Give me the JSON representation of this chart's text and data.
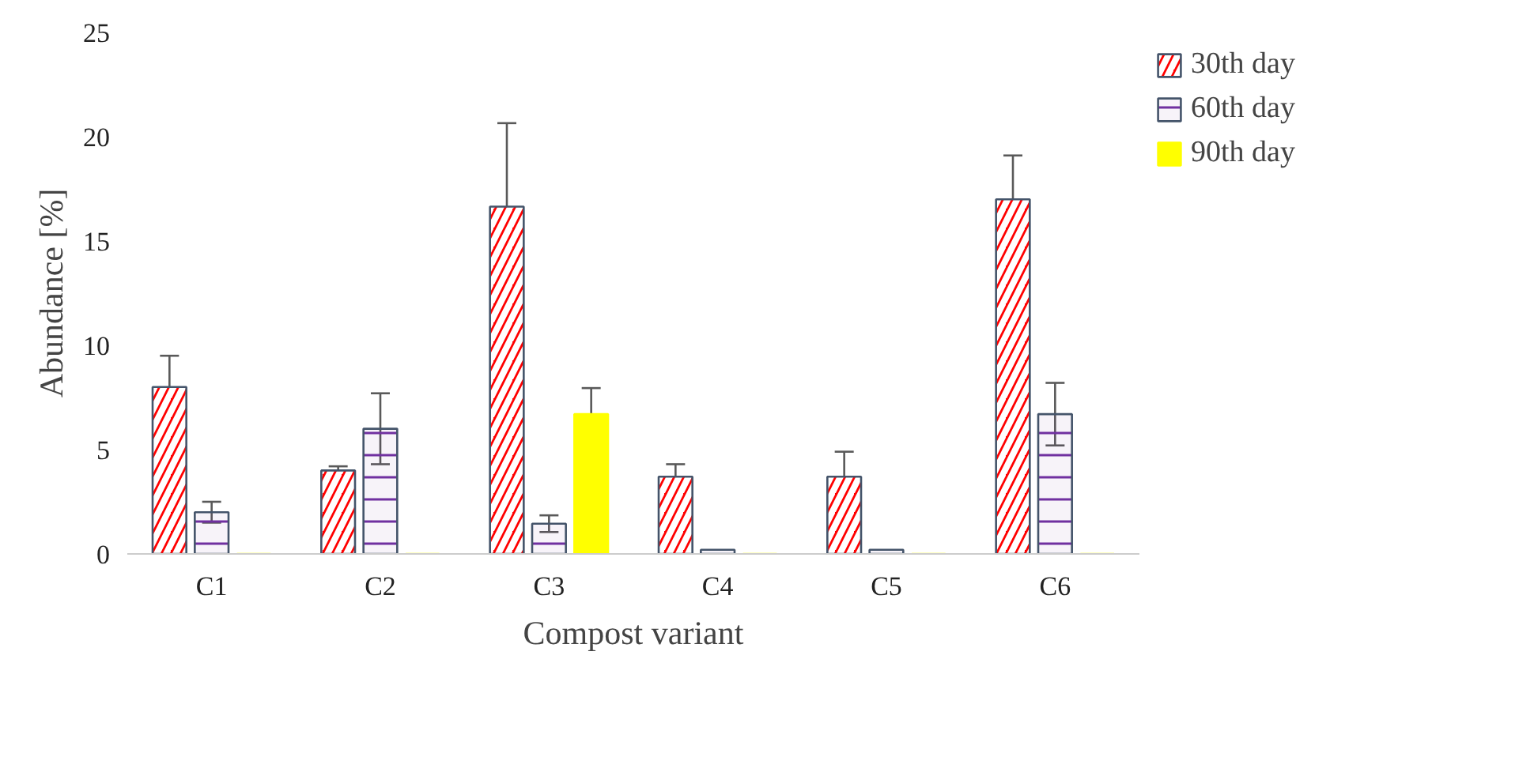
{
  "chart_data": {
    "type": "bar",
    "xlabel": "Compost variant",
    "ylabel": "Abundance [%]",
    "categories": [
      "C1",
      "C2",
      "C3",
      "C4",
      "C5",
      "C6"
    ],
    "series": [
      {
        "name": "30th day",
        "color": "#ff0000",
        "values": [
          8.0,
          4.0,
          16.65,
          3.7,
          3.7,
          17.0
        ],
        "errors": [
          1.5,
          0.2,
          4.0,
          0.6,
          1.2,
          2.1
        ]
      },
      {
        "name": "60th day",
        "color": "#7030a0",
        "values": [
          2.0,
          6.0,
          1.45,
          0.2,
          0.2,
          6.7
        ],
        "errors": [
          0.5,
          1.7,
          0.4,
          null,
          null,
          1.5
        ]
      },
      {
        "name": "90th day",
        "color": "#ffff00",
        "values": [
          0,
          0,
          6.7,
          0,
          0,
          0
        ],
        "errors": [
          null,
          null,
          1.25,
          null,
          null,
          null
        ]
      }
    ],
    "ylim": [
      0,
      25
    ],
    "yticks": [
      0,
      5,
      10,
      15,
      20,
      25
    ],
    "grid": false,
    "legend": "top right"
  }
}
